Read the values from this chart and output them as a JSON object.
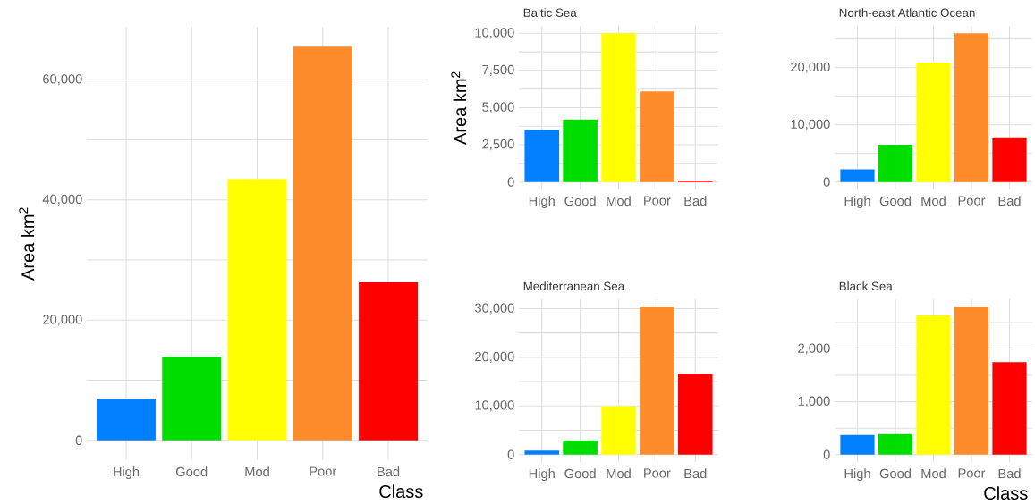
{
  "chart_data": [
    {
      "type": "bar",
      "ylabel": "Area km$^{2}$",
      "xlabel": "Class",
      "categories": [
        "High",
        "Good",
        "Mod",
        "Poor",
        "Bad"
      ],
      "values": [
        6900,
        13900,
        43500,
        65500,
        26300
      ],
      "colors": [
        "#0080ff",
        "#00dd00",
        "#ffff00",
        "#ff8c2a",
        "#ff0000"
      ],
      "ylim": [
        -3300,
        68800
      ],
      "yticks": [
        0,
        {
          "value": 10000,
          "label": null
        },
        {
          "value": 20000,
          "label": "20,000"
        },
        {
          "value": 30000,
          "label": null
        },
        {
          "value": 40000,
          "label": "40,000"
        },
        {
          "value": 50000,
          "label": null
        },
        {
          "value": 60000,
          "label": "60,000"
        }
      ],
      "grid": true
    },
    {
      "type": "bar",
      "title": "Baltic Sea",
      "ylabel": "Area km$^{2}$",
      "categories": [
        "High",
        "Good",
        "Mod",
        "Poor",
        "Bad"
      ],
      "values": [
        3500,
        4200,
        10000,
        6100,
        100
      ],
      "colors": [
        "#0080ff",
        "#00dd00",
        "#ffff00",
        "#ff8c2a",
        "#ff0000"
      ],
      "ylim": [
        -500,
        10500
      ],
      "yticks": [
        0,
        {
          "value": 1250,
          "label": null
        },
        {
          "value": 2500,
          "label": "2,500"
        },
        {
          "value": 3750,
          "label": null
        },
        {
          "value": 5000,
          "label": "5,000"
        },
        {
          "value": 6250,
          "label": null
        },
        {
          "value": 7500,
          "label": "7,500"
        },
        {
          "value": 8750,
          "label": null
        },
        {
          "value": 10000,
          "label": "10,000"
        }
      ],
      "grid": true
    },
    {
      "type": "bar",
      "title": "North-east Atlantic Ocean",
      "categories": [
        "High",
        "Good",
        "Mod",
        "Poor",
        "Bad"
      ],
      "values": [
        2200,
        6500,
        20900,
        26000,
        7800
      ],
      "colors": [
        "#0080ff",
        "#00dd00",
        "#ffff00",
        "#ff8c2a",
        "#ff0000"
      ],
      "ylim": [
        -1300,
        27300
      ],
      "yticks": [
        0,
        {
          "value": 5000,
          "label": null
        },
        {
          "value": 10000,
          "label": "10,000"
        },
        {
          "value": 15000,
          "label": null
        },
        {
          "value": 20000,
          "label": "20,000"
        },
        {
          "value": 25000,
          "label": null
        }
      ],
      "grid": true
    },
    {
      "type": "bar",
      "title": "Mediterranean Sea",
      "categories": [
        "High",
        "Good",
        "Mod",
        "Poor",
        "Bad"
      ],
      "values": [
        800,
        2900,
        9900,
        30400,
        16600
      ],
      "colors": [
        "#0080ff",
        "#00dd00",
        "#ffff00",
        "#ff8c2a",
        "#ff0000"
      ],
      "ylim": [
        -1520,
        31920
      ],
      "yticks": [
        0,
        {
          "value": 5000,
          "label": null
        },
        {
          "value": 10000,
          "label": "10,000"
        },
        {
          "value": 15000,
          "label": null
        },
        {
          "value": 20000,
          "label": "20,000"
        },
        {
          "value": 25000,
          "label": null
        },
        {
          "value": 30000,
          "label": "30,000"
        }
      ],
      "grid": true
    },
    {
      "type": "bar",
      "title": "Black Sea",
      "xlabel": "Class",
      "categories": [
        "High",
        "Good",
        "Mod",
        "Poor",
        "Bad"
      ],
      "values": [
        370,
        390,
        2640,
        2800,
        1750
      ],
      "colors": [
        "#0080ff",
        "#00dd00",
        "#ffff00",
        "#ff8c2a",
        "#ff0000"
      ],
      "ylim": [
        -140,
        2940
      ],
      "yticks": [
        0,
        {
          "value": 500,
          "label": null
        },
        {
          "value": 1000,
          "label": "1,000"
        },
        {
          "value": 1500,
          "label": null
        },
        {
          "value": 2000,
          "label": "2,000"
        },
        {
          "value": 2500,
          "label": null
        }
      ],
      "grid": true
    }
  ]
}
